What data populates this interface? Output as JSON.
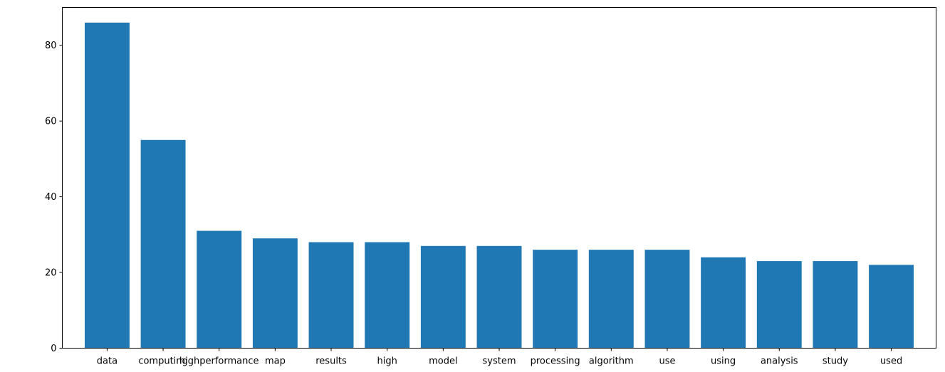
{
  "chart_data": {
    "type": "bar",
    "categories": [
      "data",
      "computing",
      "highperformance",
      "map",
      "results",
      "high",
      "model",
      "system",
      "processing",
      "algorithm",
      "use",
      "using",
      "analysis",
      "study",
      "used"
    ],
    "values": [
      86,
      55,
      31,
      29,
      28,
      28,
      27,
      27,
      26,
      26,
      26,
      24,
      23,
      23,
      22
    ],
    "title": "",
    "xlabel": "",
    "ylabel": "",
    "ylim": [
      0,
      90
    ],
    "yticks": [
      0,
      20,
      40,
      60,
      80
    ],
    "grid": false,
    "bar_color": "#1f77b4"
  }
}
